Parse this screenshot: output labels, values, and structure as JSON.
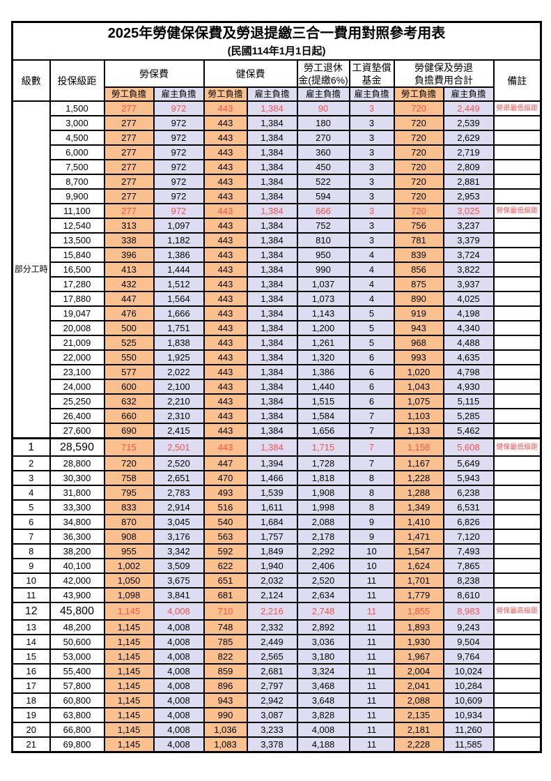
{
  "title": "2025年勞健保保費及勞退提繳三合一費用對照參考用表",
  "subtitle": "(民國114年1月1日起)",
  "header": {
    "level": "級數",
    "bracket": "投保級距",
    "labor_fee": "勞保費",
    "health_fee": "健保費",
    "pension_line1": "勞工退休",
    "pension_line2": "金(提繳6%)",
    "wage_fund_line1": "工資墊償",
    "wage_fund_line2": "基金",
    "total_line1": "勞健保及勞退",
    "total_line2": "負擔費用合計",
    "remark": "備註",
    "employee_label": "勞工負擔",
    "employer_label": "雇主負擔"
  },
  "part_time_label": "部分工時",
  "part_time_rowspan": 23,
  "colors": {
    "employee_fill": "#FAC08D",
    "employer_fill": "#DEDCF0",
    "highlight_text": "#FF5050",
    "border": "#000000"
  },
  "rows": [
    {
      "level": "",
      "bracket": "1,500",
      "labor_emp": "277",
      "labor_er": "972",
      "health_emp": "443",
      "health_er": "1,384",
      "pension": "90",
      "fund": "3",
      "total_emp": "720",
      "total_er": "2,449",
      "note": "勞退最低級距",
      "red": true,
      "big": false,
      "thick_top": false
    },
    {
      "level": "",
      "bracket": "3,000",
      "labor_emp": "277",
      "labor_er": "972",
      "health_emp": "443",
      "health_er": "1,384",
      "pension": "180",
      "fund": "3",
      "total_emp": "720",
      "total_er": "2,539",
      "note": "",
      "red": false,
      "big": false,
      "thick_top": false
    },
    {
      "level": "",
      "bracket": "4,500",
      "labor_emp": "277",
      "labor_er": "972",
      "health_emp": "443",
      "health_er": "1,384",
      "pension": "270",
      "fund": "3",
      "total_emp": "720",
      "total_er": "2,629",
      "note": "",
      "red": false,
      "big": false,
      "thick_top": false
    },
    {
      "level": "",
      "bracket": "6,000",
      "labor_emp": "277",
      "labor_er": "972",
      "health_emp": "443",
      "health_er": "1,384",
      "pension": "360",
      "fund": "3",
      "total_emp": "720",
      "total_er": "2,719",
      "note": "",
      "red": false,
      "big": false,
      "thick_top": false
    },
    {
      "level": "",
      "bracket": "7,500",
      "labor_emp": "277",
      "labor_er": "972",
      "health_emp": "443",
      "health_er": "1,384",
      "pension": "450",
      "fund": "3",
      "total_emp": "720",
      "total_er": "2,809",
      "note": "",
      "red": false,
      "big": false,
      "thick_top": false
    },
    {
      "level": "",
      "bracket": "8,700",
      "labor_emp": "277",
      "labor_er": "972",
      "health_emp": "443",
      "health_er": "1,384",
      "pension": "522",
      "fund": "3",
      "total_emp": "720",
      "total_er": "2,881",
      "note": "",
      "red": false,
      "big": false,
      "thick_top": false
    },
    {
      "level": "",
      "bracket": "9,900",
      "labor_emp": "277",
      "labor_er": "972",
      "health_emp": "443",
      "health_er": "1,384",
      "pension": "594",
      "fund": "3",
      "total_emp": "720",
      "total_er": "2,953",
      "note": "",
      "red": false,
      "big": false,
      "thick_top": false
    },
    {
      "level": "",
      "bracket": "11,100",
      "labor_emp": "277",
      "labor_er": "972",
      "health_emp": "443",
      "health_er": "1,384",
      "pension": "666",
      "fund": "3",
      "total_emp": "720",
      "total_er": "3,025",
      "note": "勞保最低級距",
      "red": true,
      "big": false,
      "thick_top": false
    },
    {
      "level": "",
      "bracket": "12,540",
      "labor_emp": "313",
      "labor_er": "1,097",
      "health_emp": "443",
      "health_er": "1,384",
      "pension": "752",
      "fund": "3",
      "total_emp": "756",
      "total_er": "3,237",
      "note": "",
      "red": false,
      "big": false,
      "thick_top": false
    },
    {
      "level": "",
      "bracket": "13,500",
      "labor_emp": "338",
      "labor_er": "1,182",
      "health_emp": "443",
      "health_er": "1,384",
      "pension": "810",
      "fund": "3",
      "total_emp": "781",
      "total_er": "3,379",
      "note": "",
      "red": false,
      "big": false,
      "thick_top": false
    },
    {
      "level": "",
      "bracket": "15,840",
      "labor_emp": "396",
      "labor_er": "1,386",
      "health_emp": "443",
      "health_er": "1,384",
      "pension": "950",
      "fund": "4",
      "total_emp": "839",
      "total_er": "3,724",
      "note": "",
      "red": false,
      "big": false,
      "thick_top": false
    },
    {
      "level": "",
      "bracket": "16,500",
      "labor_emp": "413",
      "labor_er": "1,444",
      "health_emp": "443",
      "health_er": "1,384",
      "pension": "990",
      "fund": "4",
      "total_emp": "856",
      "total_er": "3,822",
      "note": "",
      "red": false,
      "big": false,
      "thick_top": false
    },
    {
      "level": "",
      "bracket": "17,280",
      "labor_emp": "432",
      "labor_er": "1,512",
      "health_emp": "443",
      "health_er": "1,384",
      "pension": "1,037",
      "fund": "4",
      "total_emp": "875",
      "total_er": "3,937",
      "note": "",
      "red": false,
      "big": false,
      "thick_top": false
    },
    {
      "level": "",
      "bracket": "17,880",
      "labor_emp": "447",
      "labor_er": "1,564",
      "health_emp": "443",
      "health_er": "1,384",
      "pension": "1,073",
      "fund": "4",
      "total_emp": "890",
      "total_er": "4,025",
      "note": "",
      "red": false,
      "big": false,
      "thick_top": false
    },
    {
      "level": "",
      "bracket": "19,047",
      "labor_emp": "476",
      "labor_er": "1,666",
      "health_emp": "443",
      "health_er": "1,384",
      "pension": "1,143",
      "fund": "5",
      "total_emp": "919",
      "total_er": "4,198",
      "note": "",
      "red": false,
      "big": false,
      "thick_top": false
    },
    {
      "level": "",
      "bracket": "20,008",
      "labor_emp": "500",
      "labor_er": "1,751",
      "health_emp": "443",
      "health_er": "1,384",
      "pension": "1,200",
      "fund": "5",
      "total_emp": "943",
      "total_er": "4,340",
      "note": "",
      "red": false,
      "big": false,
      "thick_top": false
    },
    {
      "level": "",
      "bracket": "21,009",
      "labor_emp": "525",
      "labor_er": "1,838",
      "health_emp": "443",
      "health_er": "1,384",
      "pension": "1,261",
      "fund": "5",
      "total_emp": "968",
      "total_er": "4,488",
      "note": "",
      "red": false,
      "big": false,
      "thick_top": false
    },
    {
      "level": "",
      "bracket": "22,000",
      "labor_emp": "550",
      "labor_er": "1,925",
      "health_emp": "443",
      "health_er": "1,384",
      "pension": "1,320",
      "fund": "6",
      "total_emp": "993",
      "total_er": "4,635",
      "note": "",
      "red": false,
      "big": false,
      "thick_top": false
    },
    {
      "level": "",
      "bracket": "23,100",
      "labor_emp": "577",
      "labor_er": "2,022",
      "health_emp": "443",
      "health_er": "1,384",
      "pension": "1,386",
      "fund": "6",
      "total_emp": "1,020",
      "total_er": "4,798",
      "note": "",
      "red": false,
      "big": false,
      "thick_top": false
    },
    {
      "level": "",
      "bracket": "24,000",
      "labor_emp": "600",
      "labor_er": "2,100",
      "health_emp": "443",
      "health_er": "1,384",
      "pension": "1,440",
      "fund": "6",
      "total_emp": "1,043",
      "total_er": "4,930",
      "note": "",
      "red": false,
      "big": false,
      "thick_top": false
    },
    {
      "level": "",
      "bracket": "25,250",
      "labor_emp": "632",
      "labor_er": "2,210",
      "health_emp": "443",
      "health_er": "1,384",
      "pension": "1,515",
      "fund": "6",
      "total_emp": "1,075",
      "total_er": "5,115",
      "note": "",
      "red": false,
      "big": false,
      "thick_top": false
    },
    {
      "level": "",
      "bracket": "26,400",
      "labor_emp": "660",
      "labor_er": "2,310",
      "health_emp": "443",
      "health_er": "1,384",
      "pension": "1,584",
      "fund": "7",
      "total_emp": "1,103",
      "total_er": "5,285",
      "note": "",
      "red": false,
      "big": false,
      "thick_top": false
    },
    {
      "level": "",
      "bracket": "27,600",
      "labor_emp": "690",
      "labor_er": "2,415",
      "health_emp": "443",
      "health_er": "1,384",
      "pension": "1,656",
      "fund": "7",
      "total_emp": "1,133",
      "total_er": "5,462",
      "note": "",
      "red": false,
      "big": false,
      "thick_top": false
    },
    {
      "level": "1",
      "bracket": "28,590",
      "labor_emp": "715",
      "labor_er": "2,501",
      "health_emp": "443",
      "health_er": "1,384",
      "pension": "1,715",
      "fund": "7",
      "total_emp": "1,158",
      "total_er": "5,608",
      "note": "健保最低級距",
      "red": true,
      "big": true,
      "thick_top": true
    },
    {
      "level": "2",
      "bracket": "28,800",
      "labor_emp": "720",
      "labor_er": "2,520",
      "health_emp": "447",
      "health_er": "1,394",
      "pension": "1,728",
      "fund": "7",
      "total_emp": "1,167",
      "total_er": "5,649",
      "note": "",
      "red": false,
      "big": false,
      "thick_top": false
    },
    {
      "level": "3",
      "bracket": "30,300",
      "labor_emp": "758",
      "labor_er": "2,651",
      "health_emp": "470",
      "health_er": "1,466",
      "pension": "1,818",
      "fund": "8",
      "total_emp": "1,228",
      "total_er": "5,943",
      "note": "",
      "red": false,
      "big": false,
      "thick_top": false
    },
    {
      "level": "4",
      "bracket": "31,800",
      "labor_emp": "795",
      "labor_er": "2,783",
      "health_emp": "493",
      "health_er": "1,539",
      "pension": "1,908",
      "fund": "8",
      "total_emp": "1,288",
      "total_er": "6,238",
      "note": "",
      "red": false,
      "big": false,
      "thick_top": false
    },
    {
      "level": "5",
      "bracket": "33,300",
      "labor_emp": "833",
      "labor_er": "2,914",
      "health_emp": "516",
      "health_er": "1,611",
      "pension": "1,998",
      "fund": "8",
      "total_emp": "1,349",
      "total_er": "6,531",
      "note": "",
      "red": false,
      "big": false,
      "thick_top": false
    },
    {
      "level": "6",
      "bracket": "34,800",
      "labor_emp": "870",
      "labor_er": "3,045",
      "health_emp": "540",
      "health_er": "1,684",
      "pension": "2,088",
      "fund": "9",
      "total_emp": "1,410",
      "total_er": "6,826",
      "note": "",
      "red": false,
      "big": false,
      "thick_top": false
    },
    {
      "level": "7",
      "bracket": "36,300",
      "labor_emp": "908",
      "labor_er": "3,176",
      "health_emp": "563",
      "health_er": "1,757",
      "pension": "2,178",
      "fund": "9",
      "total_emp": "1,471",
      "total_er": "7,120",
      "note": "",
      "red": false,
      "big": false,
      "thick_top": false
    },
    {
      "level": "8",
      "bracket": "38,200",
      "labor_emp": "955",
      "labor_er": "3,342",
      "health_emp": "592",
      "health_er": "1,849",
      "pension": "2,292",
      "fund": "10",
      "total_emp": "1,547",
      "total_er": "7,493",
      "note": "",
      "red": false,
      "big": false,
      "thick_top": false
    },
    {
      "level": "9",
      "bracket": "40,100",
      "labor_emp": "1,002",
      "labor_er": "3,509",
      "health_emp": "622",
      "health_er": "1,940",
      "pension": "2,406",
      "fund": "10",
      "total_emp": "1,624",
      "total_er": "7,865",
      "note": "",
      "red": false,
      "big": false,
      "thick_top": false
    },
    {
      "level": "10",
      "bracket": "42,000",
      "labor_emp": "1,050",
      "labor_er": "3,675",
      "health_emp": "651",
      "health_er": "2,032",
      "pension": "2,520",
      "fund": "11",
      "total_emp": "1,701",
      "total_er": "8,238",
      "note": "",
      "red": false,
      "big": false,
      "thick_top": false
    },
    {
      "level": "11",
      "bracket": "43,900",
      "labor_emp": "1,098",
      "labor_er": "3,841",
      "health_emp": "681",
      "health_er": "2,124",
      "pension": "2,634",
      "fund": "11",
      "total_emp": "1,779",
      "total_er": "8,610",
      "note": "",
      "red": false,
      "big": false,
      "thick_top": false
    },
    {
      "level": "12",
      "bracket": "45,800",
      "labor_emp": "1,145",
      "labor_er": "4,008",
      "health_emp": "710",
      "health_er": "2,216",
      "pension": "2,748",
      "fund": "11",
      "total_emp": "1,855",
      "total_er": "8,983",
      "note": "勞保最高級距",
      "red": true,
      "big": true,
      "thick_top": false
    },
    {
      "level": "13",
      "bracket": "48,200",
      "labor_emp": "1,145",
      "labor_er": "4,008",
      "health_emp": "748",
      "health_er": "2,332",
      "pension": "2,892",
      "fund": "11",
      "total_emp": "1,893",
      "total_er": "9,243",
      "note": "",
      "red": false,
      "big": false,
      "thick_top": false
    },
    {
      "level": "14",
      "bracket": "50,600",
      "labor_emp": "1,145",
      "labor_er": "4,008",
      "health_emp": "785",
      "health_er": "2,449",
      "pension": "3,036",
      "fund": "11",
      "total_emp": "1,930",
      "total_er": "9,504",
      "note": "",
      "red": false,
      "big": false,
      "thick_top": false
    },
    {
      "level": "15",
      "bracket": "53,000",
      "labor_emp": "1,145",
      "labor_er": "4,008",
      "health_emp": "822",
      "health_er": "2,565",
      "pension": "3,180",
      "fund": "11",
      "total_emp": "1,967",
      "total_er": "9,764",
      "note": "",
      "red": false,
      "big": false,
      "thick_top": false
    },
    {
      "level": "16",
      "bracket": "55,400",
      "labor_emp": "1,145",
      "labor_er": "4,008",
      "health_emp": "859",
      "health_er": "2,681",
      "pension": "3,324",
      "fund": "11",
      "total_emp": "2,004",
      "total_er": "10,024",
      "note": "",
      "red": false,
      "big": false,
      "thick_top": false
    },
    {
      "level": "17",
      "bracket": "57,800",
      "labor_emp": "1,145",
      "labor_er": "4,008",
      "health_emp": "896",
      "health_er": "2,797",
      "pension": "3,468",
      "fund": "11",
      "total_emp": "2,041",
      "total_er": "10,284",
      "note": "",
      "red": false,
      "big": false,
      "thick_top": false
    },
    {
      "level": "18",
      "bracket": "60,800",
      "labor_emp": "1,145",
      "labor_er": "4,008",
      "health_emp": "943",
      "health_er": "2,942",
      "pension": "3,648",
      "fund": "11",
      "total_emp": "2,088",
      "total_er": "10,609",
      "note": "",
      "red": false,
      "big": false,
      "thick_top": false
    },
    {
      "level": "19",
      "bracket": "63,800",
      "labor_emp": "1,145",
      "labor_er": "4,008",
      "health_emp": "990",
      "health_er": "3,087",
      "pension": "3,828",
      "fund": "11",
      "total_emp": "2,135",
      "total_er": "10,934",
      "note": "",
      "red": false,
      "big": false,
      "thick_top": false
    },
    {
      "level": "20",
      "bracket": "66,800",
      "labor_emp": "1,145",
      "labor_er": "4,008",
      "health_emp": "1,036",
      "health_er": "3,233",
      "pension": "4,008",
      "fund": "11",
      "total_emp": "2,181",
      "total_er": "11,260",
      "note": "",
      "red": false,
      "big": false,
      "thick_top": false
    },
    {
      "level": "21",
      "bracket": "69,800",
      "labor_emp": "1,145",
      "labor_er": "4,008",
      "health_emp": "1,083",
      "health_er": "3,378",
      "pension": "4,188",
      "fund": "11",
      "total_emp": "2,228",
      "total_er": "11,585",
      "note": "",
      "red": false,
      "big": false,
      "thick_top": false
    }
  ]
}
